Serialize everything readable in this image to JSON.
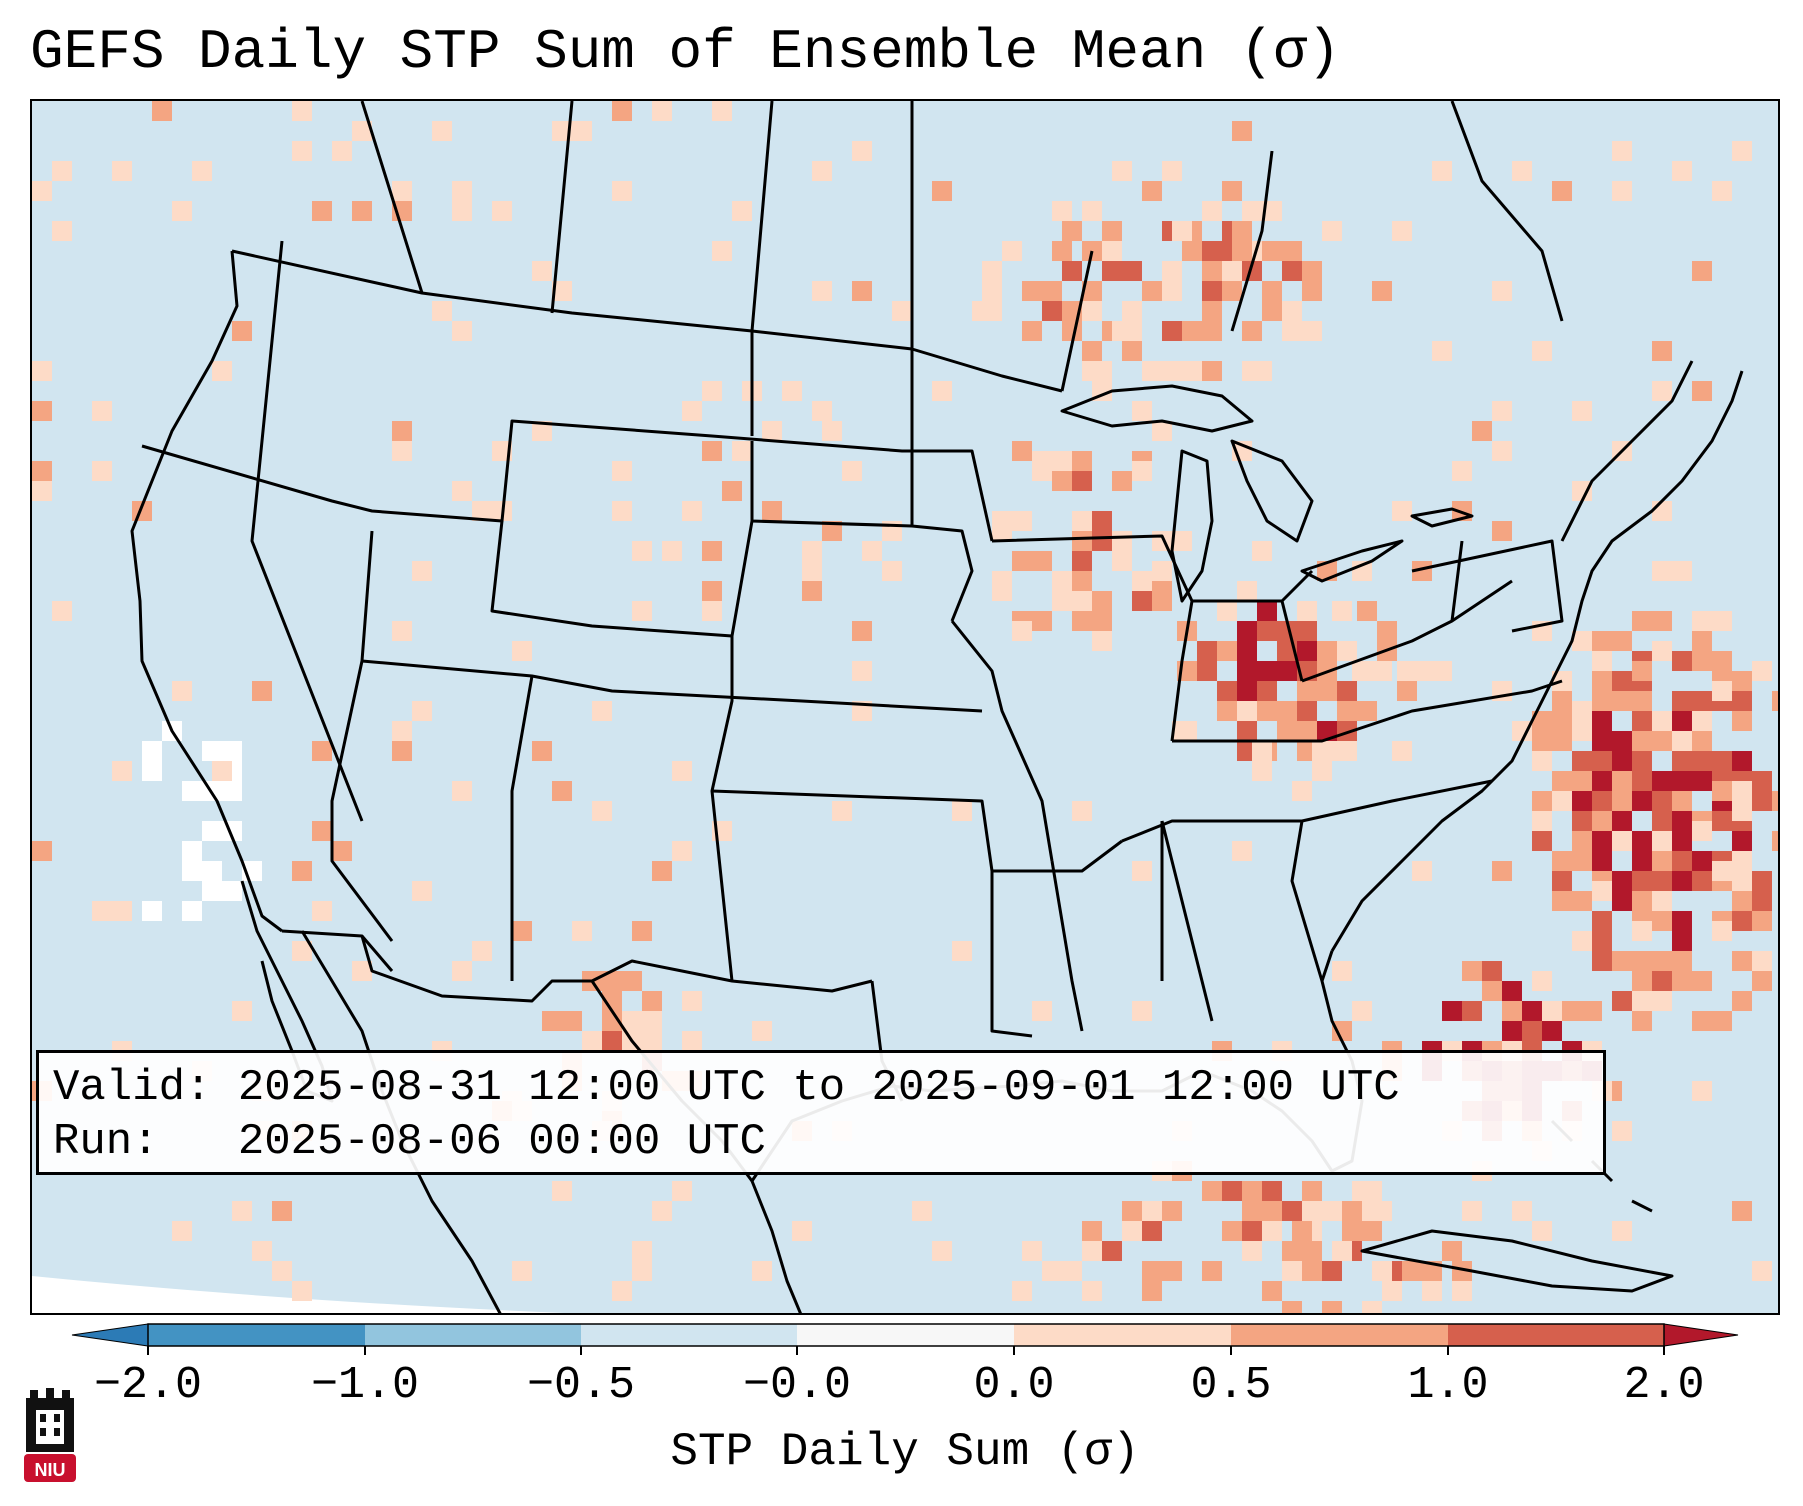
{
  "title": "GEFS Daily STP Sum of Ensemble Mean (σ)",
  "info": {
    "valid_label": "Valid:",
    "valid_value": "2025-08-31 12:00 UTC to 2025-09-01 12:00 UTC",
    "run_label": "Run:",
    "run_value": "2025-08-06 00:00 UTC"
  },
  "colorbar": {
    "label": "STP Daily Sum (σ)",
    "ticks": [
      "−2.0",
      "−1.0",
      "−0.5",
      "−0.0",
      "0.0",
      "0.5",
      "1.0",
      "2.0"
    ],
    "colors": {
      "under": "#2c7bb6",
      "b_m2_m1": "#4393c3",
      "b_m1_m05": "#92c5de",
      "b_m05_m0": "#d1e5f0",
      "b_m0_0": "#f7f7f7",
      "b_0_05": "#fddbc7",
      "b_05_1": "#f4a582",
      "b_1_2": "#d6604d",
      "over": "#b2182b"
    }
  },
  "map": {
    "background_color": "#d1e5f0",
    "boundary_color": "#000000",
    "regions": [
      {
        "name": "ohio-valley",
        "intensity": 3
      },
      {
        "name": "western-atlantic",
        "intensity": 4
      },
      {
        "name": "florida-east-coast",
        "intensity": 4
      },
      {
        "name": "great-lakes-north",
        "intensity": 2
      },
      {
        "name": "upper-midwest",
        "intensity": 2
      },
      {
        "name": "southwest-texas",
        "intensity": 2
      },
      {
        "name": "gulf-of-mexico-south",
        "intensity": 2
      },
      {
        "name": "northern-plains",
        "intensity": 1
      },
      {
        "name": "pacific-offshore",
        "intensity": 0
      }
    ]
  },
  "logo": {
    "text": "NIU"
  }
}
